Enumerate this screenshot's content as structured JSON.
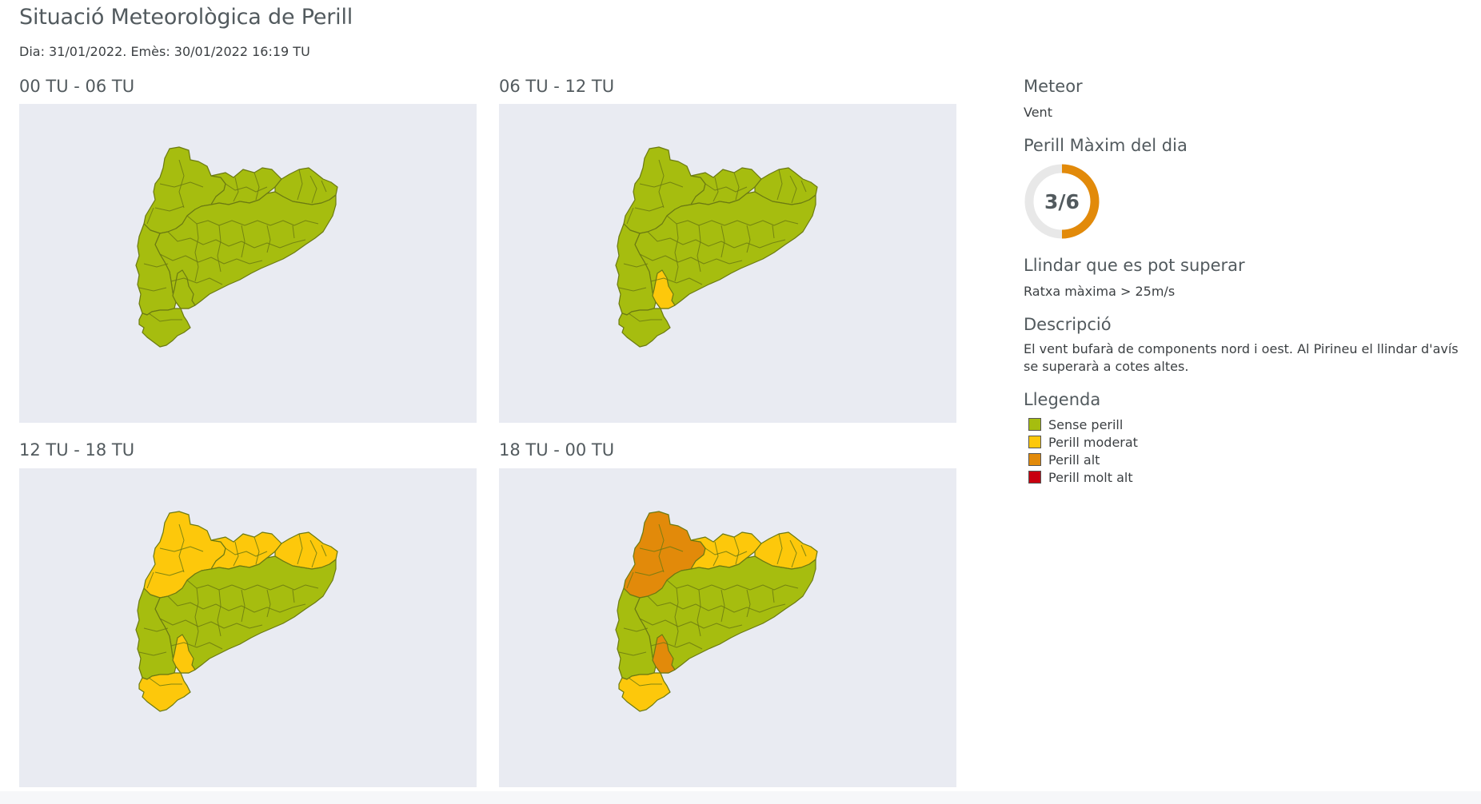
{
  "header": {
    "title": "Situació Meteorològica de Perill",
    "subtitle": "Dia: 31/01/2022. Emès: 30/01/2022 16:19 TU"
  },
  "colors": {
    "sense": "#a6bd0f",
    "moderat": "#fdc80b",
    "alt": "#e28a0a",
    "molt_alt": "#c8000f",
    "border": "#6b7a12",
    "map_bg": "#e9ebf2"
  },
  "panels": [
    {
      "label": "00 TU - 06 TU",
      "north": "sense",
      "central": "sense",
      "east": "sense",
      "coast": "sense",
      "delta": "sense"
    },
    {
      "label": "06 TU - 12 TU",
      "north": "sense",
      "central": "sense",
      "east": "sense",
      "coast": "moderat",
      "delta": "sense"
    },
    {
      "label": "12 TU - 18 TU",
      "north": "moderat",
      "central": "moderat",
      "east": "moderat",
      "coast": "moderat",
      "delta": "moderat"
    },
    {
      "label": "18 TU - 00 TU",
      "north": "alt",
      "central": "moderat",
      "east": "moderat",
      "coast": "alt",
      "delta": "moderat"
    }
  ],
  "sidebar": {
    "meteor_title": "Meteor",
    "meteor_value": "Vent",
    "max_title": "Perill Màxim del dia",
    "max_value": "3/6",
    "max_level": 3,
    "max_total": 6,
    "llindar_title": "Llindar que es pot superar",
    "llindar_value": "Ratxa màxima > 25m/s",
    "desc_title": "Descripció",
    "desc_value": "El vent bufarà de components nord i oest. Al Pirineu el llindar d'avís se superarà a cotes altes.",
    "legend_title": "Llegenda",
    "legend": [
      {
        "label": "Sense perill",
        "color": "#a6bd0f"
      },
      {
        "label": "Perill moderat",
        "color": "#fdc80b"
      },
      {
        "label": "Perill alt",
        "color": "#e28a0a"
      },
      {
        "label": "Perill molt alt",
        "color": "#c8000f"
      }
    ]
  }
}
